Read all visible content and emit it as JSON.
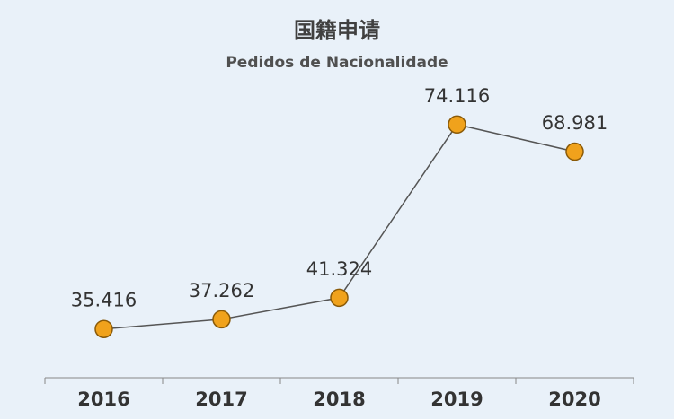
{
  "chart_data": {
    "type": "line",
    "title": "国籍申请",
    "subtitle": "Pedidos de Nacionalidade",
    "categories": [
      "2016",
      "2017",
      "2018",
      "2019",
      "2020"
    ],
    "values": [
      35416,
      37262,
      41324,
      74116,
      68981
    ],
    "data_labels": [
      "35.416",
      "37.262",
      "41.324",
      "74.116",
      "68.981"
    ],
    "xlabel": "",
    "ylabel": "",
    "ylim": [
      20000,
      90000
    ],
    "grid": false,
    "legend": "none",
    "colors": {
      "line": "#555555",
      "marker_fill": "#f0a21c",
      "marker_stroke": "#8a5a08",
      "axis": "#888888",
      "text": "#333333",
      "background": "#e9f1f9"
    }
  }
}
